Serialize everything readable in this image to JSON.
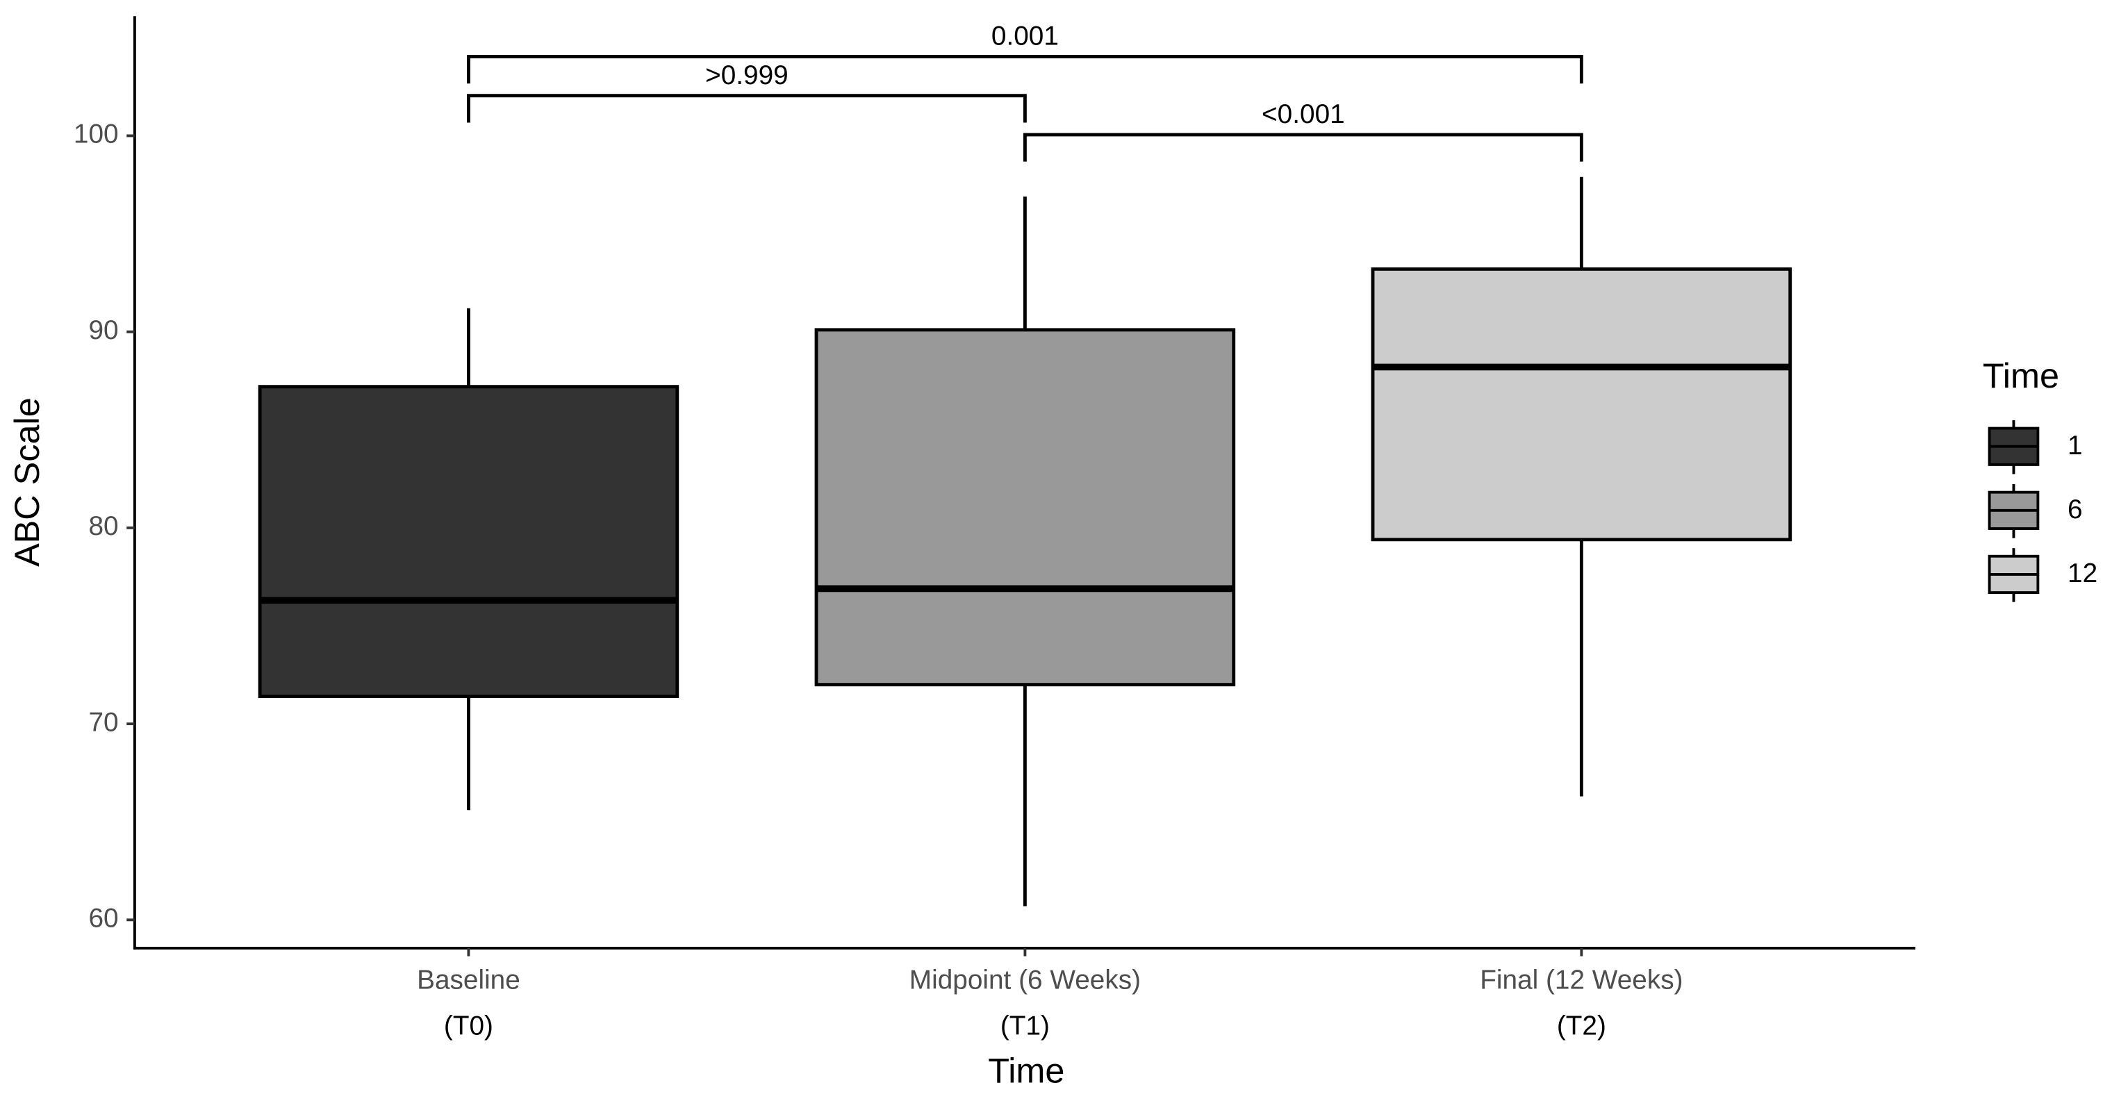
{
  "chart_data": {
    "type": "box",
    "x_label": "Time",
    "y_label": "ABC Scale",
    "categories": [
      "Baseline",
      "Midpoint (6 Weeks)",
      "Final (12 Weeks)"
    ],
    "category_sublabels": [
      "(T0)",
      "(T1)",
      "(T2)"
    ],
    "boxes": [
      {
        "min": 65.6,
        "q1": 71.4,
        "median": 76.3,
        "q3": 87.2,
        "max": 91.2
      },
      {
        "min": 60.7,
        "q1": 72.0,
        "median": 76.9,
        "q3": 90.1,
        "max": 96.9
      },
      {
        "min": 66.3,
        "q1": 79.4,
        "median": 88.2,
        "q3": 93.2,
        "max": 97.9
      }
    ],
    "colors": [
      "#333333",
      "#999999",
      "#cccccc"
    ],
    "legend_title": "Time",
    "legend_labels": [
      "1",
      "6",
      "12"
    ],
    "comparisons": [
      {
        "from": 0,
        "to": 2,
        "label": "0.001"
      },
      {
        "from": 0,
        "to": 1,
        "label": ">0.999"
      },
      {
        "from": 1,
        "to": 2,
        "label": "<0.001"
      }
    ],
    "ylim": [
      58.56,
      106.1
    ],
    "yticks": [
      60,
      70,
      80,
      90,
      100
    ],
    "grid": false
  }
}
